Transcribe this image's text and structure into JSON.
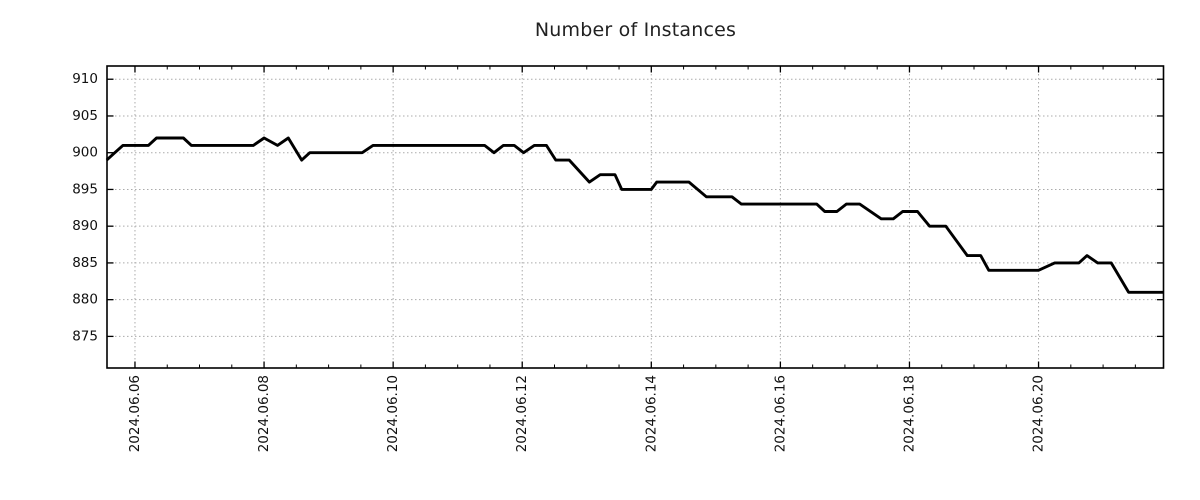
{
  "page": {
    "background": "#ffffff"
  },
  "chart_data": {
    "type": "line",
    "title": "Number of Instances",
    "xlabel": "",
    "ylabel": "",
    "legend": "none",
    "grid": "dotted at major ticks, both axes",
    "x_epoch": "2024-06-06 00:00",
    "x_tick_labels": [
      "2024.06.06",
      "2024.06.08",
      "2024.06.10",
      "2024.06.12",
      "2024.06.14",
      "2024.06.16",
      "2024.06.18",
      "2024.06.20"
    ],
    "x_tick_days": [
      0,
      2,
      4,
      6,
      8,
      10,
      12,
      14
    ],
    "x_minor_tick_interval_days": 0.5,
    "y_ticks": [
      875,
      880,
      885,
      890,
      895,
      900,
      905,
      910
    ],
    "ylim": [
      870.7,
      911.8
    ],
    "xlim_days": [
      -0.4334,
      15.936
    ],
    "series": [
      {
        "name": "Number of Instances",
        "color": "#000000",
        "points": [
          [
            "2024-06-05 13:30",
            899
          ],
          [
            "2024-06-05 16:30",
            900
          ],
          [
            "2024-06-05 19:30",
            901
          ],
          [
            "2024-06-06 05:00",
            901
          ],
          [
            "2024-06-06 08:00",
            902
          ],
          [
            "2024-06-06 18:00",
            902
          ],
          [
            "2024-06-06 21:00",
            901
          ],
          [
            "2024-06-07 20:00",
            901
          ],
          [
            "2024-06-08 00:00",
            902
          ],
          [
            "2024-06-08 05:00",
            901
          ],
          [
            "2024-06-08 09:00",
            902
          ],
          [
            "2024-06-08 14:00",
            899
          ],
          [
            "2024-06-08 17:00",
            900
          ],
          [
            "2024-06-09 12:30",
            900
          ],
          [
            "2024-06-09 16:30",
            901
          ],
          [
            "2024-06-11 10:00",
            901
          ],
          [
            "2024-06-11 13:30",
            900
          ],
          [
            "2024-06-11 17:00",
            901
          ],
          [
            "2024-06-11 21:00",
            901
          ],
          [
            "2024-06-12 00:30",
            900
          ],
          [
            "2024-06-12 04:30",
            901
          ],
          [
            "2024-06-12 09:00",
            901
          ],
          [
            "2024-06-12 12:30",
            899
          ],
          [
            "2024-06-12 17:30",
            899
          ],
          [
            "2024-06-13 01:00",
            896
          ],
          [
            "2024-06-13 05:00",
            897
          ],
          [
            "2024-06-13 10:30",
            897
          ],
          [
            "2024-06-13 13:00",
            895
          ],
          [
            "2024-06-14 00:00",
            895
          ],
          [
            "2024-06-14 02:00",
            896
          ],
          [
            "2024-06-14 14:00",
            896
          ],
          [
            "2024-06-14 20:30",
            894
          ],
          [
            "2024-06-15 06:00",
            894
          ],
          [
            "2024-06-15 09:30",
            893
          ],
          [
            "2024-06-16 13:30",
            893
          ],
          [
            "2024-06-16 16:30",
            892
          ],
          [
            "2024-06-16 21:00",
            892
          ],
          [
            "2024-06-17 00:30",
            893
          ],
          [
            "2024-06-17 05:30",
            893
          ],
          [
            "2024-06-17 13:30",
            891
          ],
          [
            "2024-06-17 18:00",
            891
          ],
          [
            "2024-06-17 21:30",
            892
          ],
          [
            "2024-06-18 03:00",
            892
          ],
          [
            "2024-06-18 07:30",
            890
          ],
          [
            "2024-06-18 13:30",
            890
          ],
          [
            "2024-06-18 21:30",
            886
          ],
          [
            "2024-06-19 02:30",
            886
          ],
          [
            "2024-06-19 05:30",
            884
          ],
          [
            "2024-06-20 00:00",
            884
          ],
          [
            "2024-06-20 06:00",
            885
          ],
          [
            "2024-06-20 15:00",
            885
          ],
          [
            "2024-06-20 18:00",
            886
          ],
          [
            "2024-06-20 22:00",
            885
          ],
          [
            "2024-06-21 03:00",
            885
          ],
          [
            "2024-06-21 09:30",
            881
          ],
          [
            "2024-06-21 22:30",
            881
          ]
        ]
      }
    ]
  },
  "style": {
    "line_color": "#000000",
    "grid_color": "#ababab",
    "axis_color": "#000000",
    "text_color": "#111111",
    "title_color": "#212121"
  }
}
